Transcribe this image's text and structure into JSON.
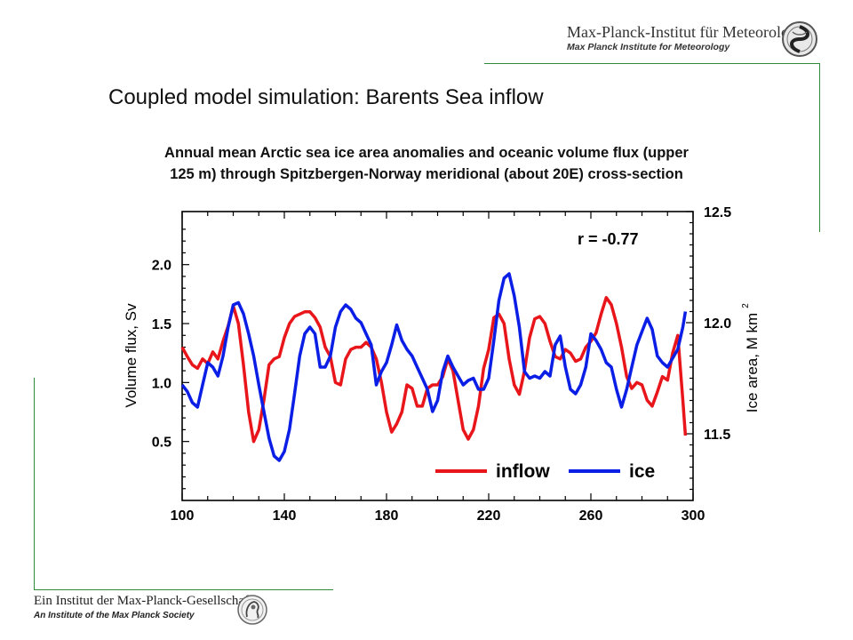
{
  "header": {
    "institute": "Max-Planck-Institut für Meteorologie",
    "institute_en": "Max Planck Institute for Meteorology",
    "logo_icon": "mpi-meteorology-logo-icon"
  },
  "slide": {
    "title": "Coupled model simulation: Barents Sea inflow",
    "subtitle_line1": "Annual mean Arctic sea ice area anomalies and oceanic volume flux (upper",
    "subtitle_line2": "125 m) through Spitzbergen-Norway meridional (about 20E) cross-section"
  },
  "footer": {
    "society": "Ein Institut der Max-Planck-Gesellschaft",
    "society_en": "An Institute of the Max Planck Society",
    "logo_icon": "minerva-logo-icon"
  },
  "colors": {
    "accent_line": "#2e8b3a",
    "inflow": "#e8161b",
    "ice": "#0a1ee6"
  },
  "chart_data": {
    "type": "line",
    "annotation": "r = -0.77",
    "xlim": [
      100,
      300
    ],
    "x_ticks": [
      "100",
      "140",
      "180",
      "220",
      "260",
      "300"
    ],
    "y_left": {
      "label": "Volume flux, Sv",
      "lim": [
        0.0,
        2.45
      ],
      "ticks": [
        "0.5",
        "1.0",
        "1.5",
        "2.0"
      ]
    },
    "y_right": {
      "label": "Ice area, M km",
      "label_sup": "2",
      "lim": [
        11.2,
        12.5
      ],
      "ticks": [
        "11.5",
        "12.0",
        "12.5"
      ]
    },
    "legend_position": "bottom-right",
    "series": [
      {
        "name": "inflow",
        "axis": "left",
        "x": [
          100,
          102,
          104,
          106,
          108,
          110,
          112,
          114,
          116,
          118,
          120,
          122,
          124,
          126,
          128,
          130,
          132,
          134,
          136,
          138,
          140,
          142,
          144,
          146,
          148,
          150,
          152,
          154,
          156,
          158,
          160,
          162,
          164,
          166,
          168,
          170,
          172,
          174,
          176,
          178,
          180,
          182,
          184,
          186,
          188,
          190,
          192,
          194,
          196,
          198,
          200,
          202,
          204,
          206,
          208,
          210,
          212,
          214,
          216,
          218,
          220,
          222,
          224,
          226,
          228,
          230,
          232,
          234,
          236,
          238,
          240,
          242,
          244,
          246,
          248,
          250,
          252,
          254,
          256,
          258,
          260,
          262,
          264,
          266,
          268,
          270,
          272,
          274,
          276,
          278,
          280,
          282,
          284,
          286,
          288,
          290,
          292,
          294,
          296,
          297
        ],
        "values": [
          1.3,
          1.22,
          1.15,
          1.12,
          1.2,
          1.16,
          1.26,
          1.2,
          1.35,
          1.48,
          1.65,
          1.5,
          1.15,
          0.75,
          0.5,
          0.6,
          0.85,
          1.15,
          1.2,
          1.22,
          1.38,
          1.5,
          1.56,
          1.58,
          1.6,
          1.6,
          1.55,
          1.47,
          1.3,
          1.22,
          1.0,
          0.98,
          1.2,
          1.28,
          1.3,
          1.3,
          1.34,
          1.3,
          1.2,
          1.0,
          0.75,
          0.58,
          0.65,
          0.75,
          0.98,
          0.95,
          0.8,
          0.8,
          0.95,
          0.98,
          0.98,
          1.05,
          1.2,
          1.1,
          0.85,
          0.6,
          0.52,
          0.6,
          0.8,
          1.12,
          1.28,
          1.55,
          1.58,
          1.5,
          1.2,
          0.98,
          0.9,
          1.1,
          1.38,
          1.54,
          1.56,
          1.5,
          1.35,
          1.22,
          1.2,
          1.28,
          1.25,
          1.18,
          1.2,
          1.3,
          1.35,
          1.42,
          1.58,
          1.72,
          1.66,
          1.5,
          1.3,
          1.05,
          0.95,
          1.0,
          0.98,
          0.85,
          0.8,
          0.92,
          1.05,
          1.02,
          1.25,
          1.4,
          0.85,
          0.55
        ]
      },
      {
        "name": "ice",
        "axis": "right",
        "x": [
          100,
          102,
          104,
          106,
          108,
          110,
          112,
          114,
          116,
          118,
          120,
          122,
          124,
          126,
          128,
          130,
          132,
          134,
          136,
          138,
          140,
          142,
          144,
          146,
          148,
          150,
          152,
          154,
          156,
          158,
          160,
          162,
          164,
          166,
          168,
          170,
          172,
          174,
          176,
          178,
          180,
          182,
          184,
          186,
          188,
          190,
          192,
          194,
          196,
          198,
          200,
          202,
          204,
          206,
          208,
          210,
          212,
          214,
          216,
          218,
          220,
          222,
          224,
          226,
          228,
          230,
          232,
          234,
          236,
          238,
          240,
          242,
          244,
          246,
          248,
          250,
          252,
          254,
          256,
          258,
          260,
          262,
          264,
          266,
          268,
          270,
          272,
          274,
          276,
          278,
          280,
          282,
          284,
          286,
          288,
          290,
          292,
          294,
          296,
          297
        ],
        "values": [
          11.72,
          11.69,
          11.64,
          11.62,
          11.72,
          11.82,
          11.8,
          11.76,
          11.85,
          11.98,
          12.08,
          12.09,
          12.04,
          11.95,
          11.85,
          11.72,
          11.6,
          11.48,
          11.4,
          11.38,
          11.42,
          11.52,
          11.68,
          11.85,
          11.95,
          11.98,
          11.95,
          11.8,
          11.8,
          11.85,
          11.98,
          12.05,
          12.08,
          12.06,
          12.02,
          12.0,
          11.95,
          11.9,
          11.72,
          11.78,
          11.82,
          11.9,
          11.99,
          11.92,
          11.88,
          11.85,
          11.8,
          11.75,
          11.7,
          11.6,
          11.65,
          11.78,
          11.85,
          11.8,
          11.76,
          11.72,
          11.74,
          11.75,
          11.7,
          11.7,
          11.75,
          11.92,
          12.1,
          12.2,
          12.22,
          12.12,
          11.98,
          11.78,
          11.75,
          11.76,
          11.75,
          11.78,
          11.76,
          11.9,
          11.94,
          11.8,
          11.7,
          11.68,
          11.72,
          11.8,
          11.95,
          11.92,
          11.88,
          11.82,
          11.8,
          11.7,
          11.62,
          11.7,
          11.8,
          11.9,
          11.96,
          12.02,
          11.97,
          11.85,
          11.82,
          11.8,
          11.84,
          11.88,
          11.98,
          12.05
        ]
      }
    ]
  }
}
